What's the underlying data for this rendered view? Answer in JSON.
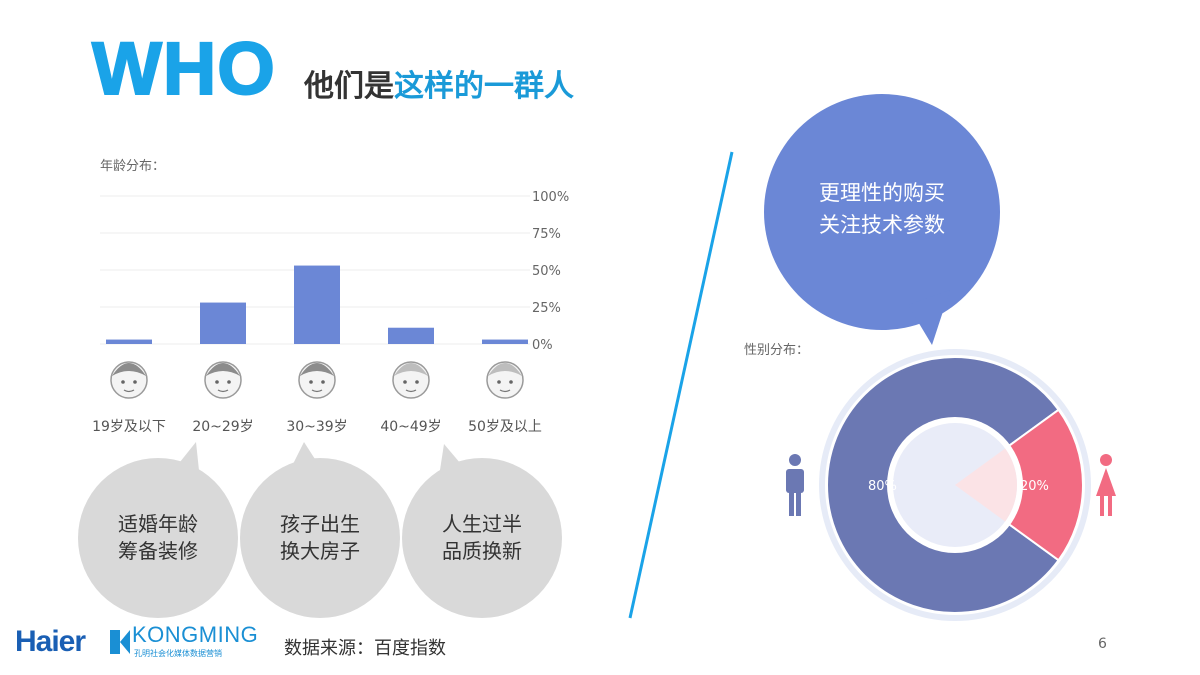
{
  "title": {
    "main": "WHO",
    "sub_part1": "他们是",
    "sub_part2": "这样的一群人"
  },
  "age_section": {
    "label": "年龄分布：",
    "bubbles": [
      {
        "line1": "适婚年龄",
        "line2": "筹备装修"
      },
      {
        "line1": "孩子出生",
        "line2": "换大房子"
      },
      {
        "line1": "人生过半",
        "line2": "品质换新"
      }
    ]
  },
  "gender_section": {
    "label": "性别分布：",
    "speech_line1": "更理性的购买",
    "speech_line2": "关注技术参数",
    "male_label": "80%",
    "female_label": "20%"
  },
  "footer": {
    "source": "数据来源：百度指数",
    "page_number": "6",
    "brand1": "Haier",
    "brand2": "KONGMING",
    "brand2_tagline": "孔明社会化媒体数据营销"
  },
  "colors": {
    "accent_blue": "#1aa3e8",
    "bar": "#6b87d6",
    "male": "#6b78b3",
    "female": "#f26b82",
    "bubble": "#d9d9d9",
    "speech": "#6b87d6"
  },
  "chart_data": [
    {
      "type": "bar",
      "title": "年龄分布：",
      "categories": [
        "19岁及以下",
        "20~29岁",
        "30~39岁",
        "40~49岁",
        "50岁及以上"
      ],
      "values": [
        3,
        28,
        53,
        11,
        3
      ],
      "y_ticks": [
        "0%",
        "25%",
        "50%",
        "75%",
        "100%"
      ],
      "ylim": [
        0,
        100
      ],
      "grid": true,
      "y_axis_position": "right"
    },
    {
      "type": "pie",
      "title": "性别分布：",
      "labels": [
        "80%",
        "20%"
      ],
      "values": [
        80,
        20
      ]
    }
  ]
}
